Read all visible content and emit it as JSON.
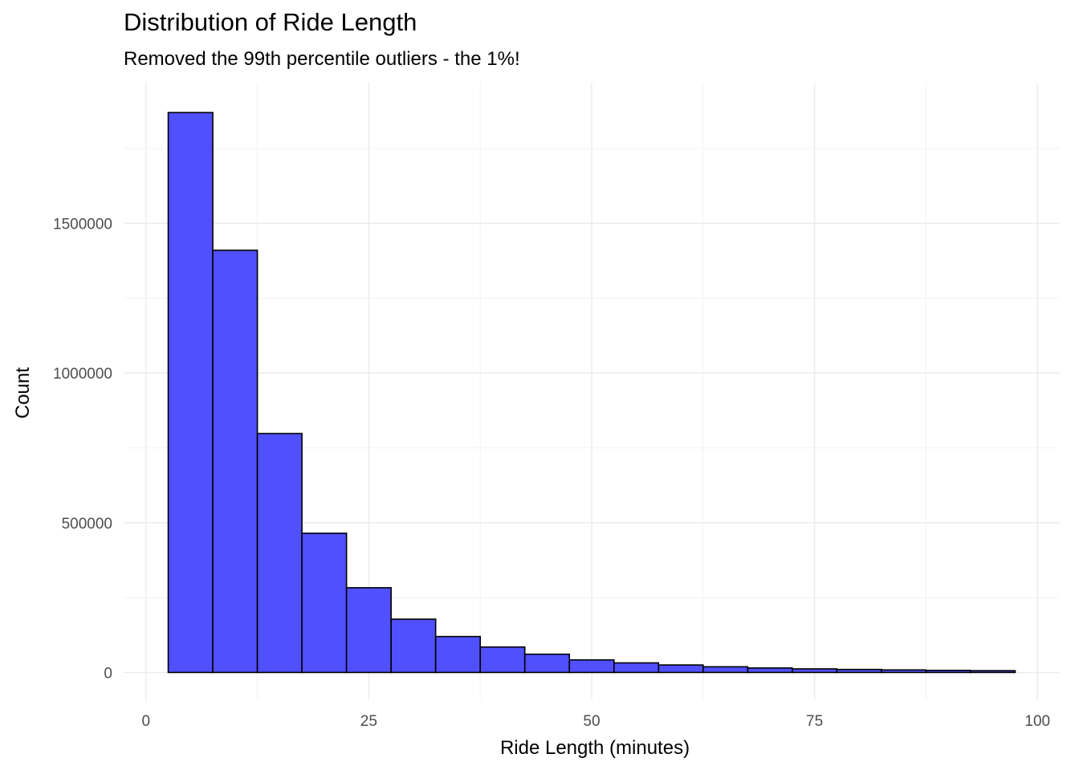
{
  "chart_data": {
    "type": "bar",
    "title": "Distribution of Ride Length",
    "subtitle": "Removed the 99th percentile outliers - the 1%!",
    "xlabel": "Ride Length (minutes)",
    "ylabel": "Count",
    "xlim": [
      -2.5,
      102.5
    ],
    "ylim": [
      -90000,
      1970000
    ],
    "x_ticks": [
      0,
      25,
      50,
      75,
      100
    ],
    "y_ticks": [
      0,
      500000,
      1000000,
      1500000
    ],
    "grid": true,
    "bar_color": "#5050ff",
    "bar_edge_color": "#000000",
    "bins": [
      {
        "x0": 2.5,
        "x1": 7.5,
        "count": 1870000
      },
      {
        "x0": 7.5,
        "x1": 12.5,
        "count": 1410000
      },
      {
        "x0": 12.5,
        "x1": 17.5,
        "count": 798000
      },
      {
        "x0": 17.5,
        "x1": 22.5,
        "count": 465000
      },
      {
        "x0": 22.5,
        "x1": 27.5,
        "count": 283000
      },
      {
        "x0": 27.5,
        "x1": 32.5,
        "count": 178000
      },
      {
        "x0": 32.5,
        "x1": 37.5,
        "count": 120000
      },
      {
        "x0": 37.5,
        "x1": 42.5,
        "count": 85000
      },
      {
        "x0": 42.5,
        "x1": 47.5,
        "count": 61000
      },
      {
        "x0": 47.5,
        "x1": 52.5,
        "count": 42000
      },
      {
        "x0": 52.5,
        "x1": 57.5,
        "count": 32000
      },
      {
        "x0": 57.5,
        "x1": 62.5,
        "count": 25000
      },
      {
        "x0": 62.5,
        "x1": 67.5,
        "count": 19000
      },
      {
        "x0": 67.5,
        "x1": 72.5,
        "count": 15000
      },
      {
        "x0": 72.5,
        "x1": 77.5,
        "count": 12000
      },
      {
        "x0": 77.5,
        "x1": 82.5,
        "count": 10000
      },
      {
        "x0": 82.5,
        "x1": 87.5,
        "count": 8500
      },
      {
        "x0": 87.5,
        "x1": 92.5,
        "count": 7000
      },
      {
        "x0": 92.5,
        "x1": 97.5,
        "count": 6000
      }
    ]
  }
}
